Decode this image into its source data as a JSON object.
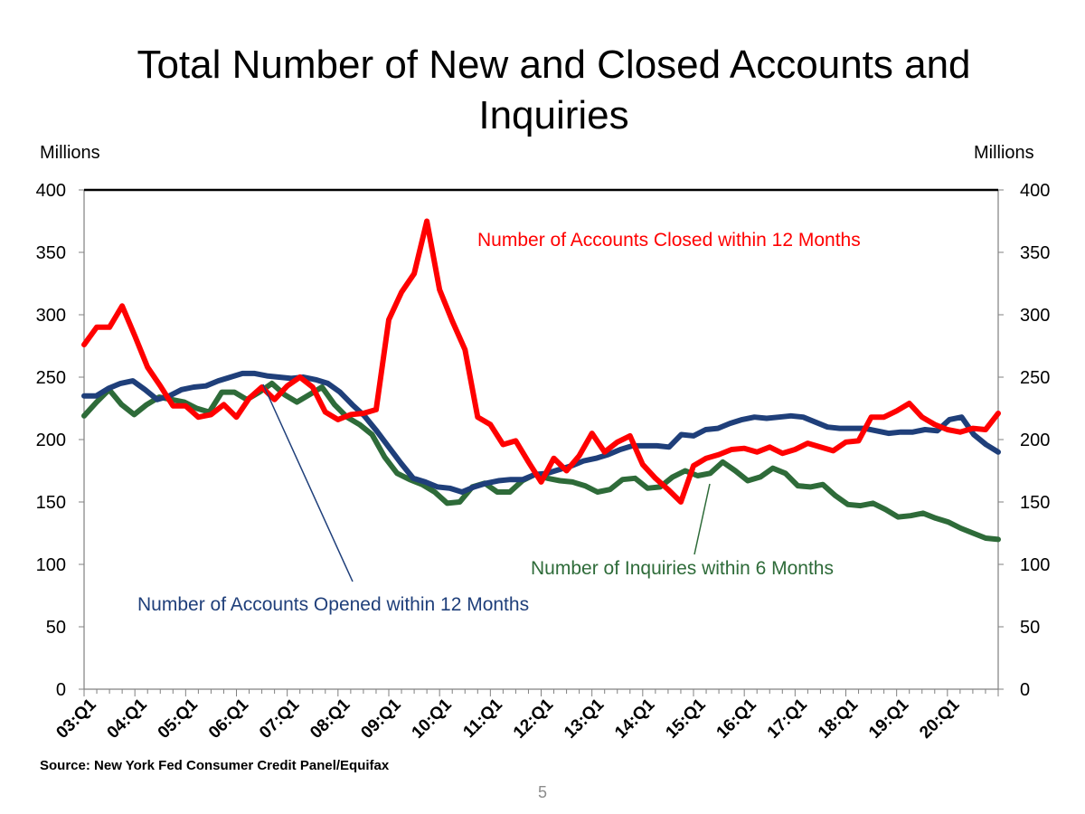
{
  "slide": {
    "title_line1": "Total Number of New and Closed Accounts and",
    "title_line2": "Inquiries",
    "left_unit": "Millions",
    "right_unit": "Millions",
    "source": "Source: New York Fed Consumer Credit Panel/Equifax",
    "page_number": "5"
  },
  "chart_data": {
    "type": "line",
    "title": "Total Number of New and Closed Accounts and Inquiries",
    "ylabel": "Millions",
    "y2label": "Millions",
    "ylim": [
      0,
      400
    ],
    "y_ticks": [
      0,
      50,
      100,
      150,
      200,
      250,
      300,
      350,
      400
    ],
    "x_tick_labels": [
      "03:Q1",
      "04:Q1",
      "05:Q1",
      "06:Q1",
      "07:Q1",
      "08:Q1",
      "09:Q1",
      "10:Q1",
      "11:Q1",
      "12:Q1",
      "13:Q1",
      "14:Q1",
      "15:Q1",
      "16:Q1",
      "17:Q1",
      "18:Q1",
      "19:Q1",
      "20:Q1"
    ],
    "x_start": "03:Q1",
    "x_end": "20:Q4",
    "reference_line": 400,
    "series": [
      {
        "name": "Number of Accounts Closed within 12 Months",
        "color": "#ff0000",
        "values": [
          276,
          290,
          290,
          307,
          283,
          258,
          243,
          227,
          227,
          218,
          220,
          228,
          218,
          233,
          242,
          232,
          243,
          250,
          242,
          222,
          216,
          220,
          221,
          224,
          296,
          318,
          333,
          375,
          320,
          295,
          272,
          218,
          212,
          196,
          199,
          182,
          166,
          185,
          175,
          187,
          205,
          190,
          198,
          203,
          180,
          169,
          160,
          150,
          179,
          185,
          188,
          192,
          193,
          190,
          194,
          189,
          192,
          197,
          194,
          191,
          198,
          199,
          218,
          218,
          223,
          229,
          218,
          212,
          208,
          206,
          209,
          208,
          221
        ]
      },
      {
        "name": "Number of Accounts Opened within 12 Months",
        "color": "#1f3f7a",
        "values": [
          235,
          235,
          241,
          245,
          247,
          240,
          232,
          235,
          240,
          242,
          243,
          247,
          250,
          253,
          253,
          251,
          250,
          249,
          250,
          248,
          245,
          238,
          228,
          219,
          207,
          194,
          181,
          169,
          166,
          162,
          161,
          158,
          162,
          165,
          167,
          168,
          168,
          172,
          173,
          176,
          179,
          183,
          185,
          188,
          192,
          195,
          195,
          195,
          194,
          204,
          203,
          208,
          209,
          213,
          216,
          218,
          217,
          218,
          219,
          218,
          214,
          210,
          209,
          209,
          209,
          207,
          205,
          206,
          206,
          208,
          207,
          216,
          218,
          204,
          196,
          190
        ]
      },
      {
        "name": "Number of Inquiries within 6 Months",
        "color": "#2e6b39",
        "values": [
          219,
          230,
          240,
          228,
          220,
          228,
          234,
          232,
          230,
          225,
          222,
          238,
          238,
          232,
          238,
          245,
          236,
          230,
          236,
          242,
          228,
          218,
          212,
          204,
          186,
          173,
          168,
          164,
          158,
          149,
          150,
          162,
          165,
          158,
          158,
          167,
          172,
          169,
          167,
          166,
          163,
          158,
          160,
          168,
          169,
          161,
          162,
          170,
          175,
          171,
          173,
          182,
          175,
          167,
          170,
          177,
          173,
          163,
          162,
          164,
          155,
          148,
          147,
          149,
          144,
          138,
          139,
          141,
          137,
          134,
          129,
          125,
          121,
          120
        ]
      }
    ],
    "annotations": [
      "Number of Accounts Closed within 12 Months",
      "Number of Accounts Opened within 12 Months",
      "Number of Inquiries within 6 Months"
    ],
    "grid": false,
    "legend": "none (inline annotations)"
  }
}
